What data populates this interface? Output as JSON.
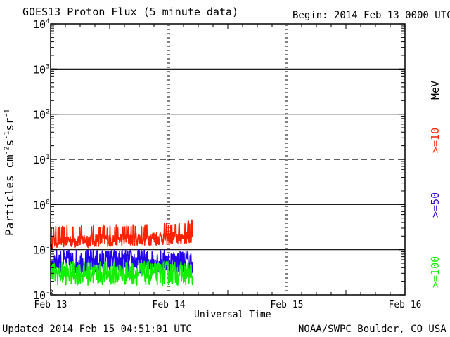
{
  "header": {
    "title": "GOES13 Proton Flux (5 minute data)",
    "begin": "Begin: 2014 Feb 13 0000 UTC"
  },
  "footer": {
    "updated": "Updated 2014 Feb 15 04:51:01 UTC",
    "source": "NOAA/SWPC Boulder, CO USA"
  },
  "chart_data": {
    "type": "line",
    "title": "GOES13 Proton Flux (5 minute data)",
    "xlabel": "Universal Time",
    "ylabel": "Particles cm-2s-1sr-1",
    "yscale": "log",
    "ylim": [
      0.01,
      10000
    ],
    "y_ticks": [
      {
        "value": 0.01,
        "base": "10",
        "exp": "-2"
      },
      {
        "value": 0.1,
        "base": "10",
        "exp": "-1"
      },
      {
        "value": 1,
        "base": "10",
        "exp": "0"
      },
      {
        "value": 10,
        "base": "10",
        "exp": "1"
      },
      {
        "value": 100,
        "base": "10",
        "exp": "2"
      },
      {
        "value": 1000,
        "base": "10",
        "exp": "3"
      },
      {
        "value": 10000,
        "base": "10",
        "exp": "4"
      }
    ],
    "x_ticks": [
      "Feb 13",
      "Feb 14",
      "Feb 15",
      "Feb 16"
    ],
    "xlim_days": [
      0,
      3
    ],
    "data_end_day": 1.2,
    "threshold_lines": [
      {
        "value": 10,
        "style": "dashed"
      }
    ],
    "legend": {
      "unit": "MeV",
      "placement": "right"
    },
    "series": [
      {
        "name": ">=10",
        "color": "#ff2200",
        "baseline": 0.12,
        "min": 0.1,
        "max": 0.45
      },
      {
        "name": ">=50",
        "color": "#2200ee",
        "baseline": 0.055,
        "min": 0.03,
        "max": 0.12
      },
      {
        "name": ">=100",
        "color": "#11ee00",
        "baseline": 0.03,
        "min": 0.015,
        "max": 0.06
      }
    ]
  }
}
